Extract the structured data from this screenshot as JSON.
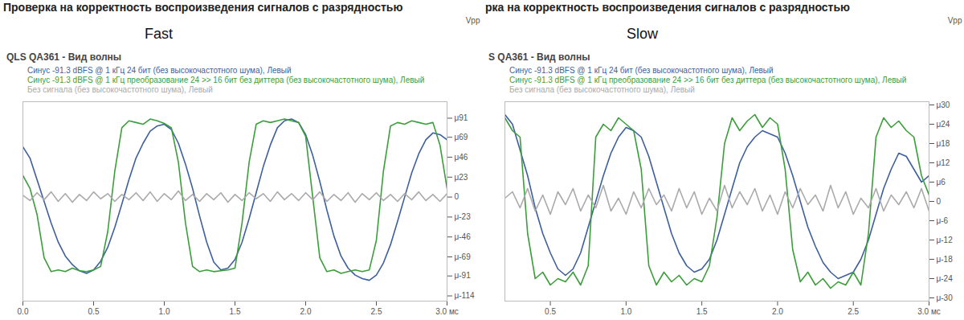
{
  "chart_data": [
    {
      "type": "line",
      "title": "Проверка на корректность воспроизведения сигналов с разрядностью",
      "subtitle": "QLS QA361 - Вид волны",
      "annotations": [
        "Fast"
      ],
      "ylabel": "Vpp",
      "grid": false,
      "xlim": [
        0,
        3
      ],
      "xticks": [
        {
          "value": 0,
          "label": "0.0"
        },
        0.5,
        {
          "value": 1,
          "label": "1.0"
        },
        1.5,
        {
          "value": 2,
          "label": "2.0"
        },
        2.5,
        {
          "value": 3,
          "label": "3.0 мс"
        }
      ],
      "ylim": [
        -120,
        110
      ],
      "yticks": [
        {
          "value": 91,
          "label": "μ91"
        },
        {
          "value": 69,
          "label": "μ69"
        },
        {
          "value": 46,
          "label": "μ46"
        },
        {
          "value": 23,
          "label": "μ23"
        },
        0,
        {
          "value": -23,
          "label": "μ-23"
        },
        {
          "value": -46,
          "label": "μ-46"
        },
        {
          "value": -69,
          "label": "μ-69"
        },
        {
          "value": -91,
          "label": "μ-91"
        },
        {
          "value": -114,
          "label": "μ-114"
        }
      ],
      "x": [
        0,
        0.05,
        0.1,
        0.15,
        0.2,
        0.25,
        0.3,
        0.35,
        0.4,
        0.45,
        0.5,
        0.55,
        0.6,
        0.65,
        0.7,
        0.75,
        0.8,
        0.85,
        0.9,
        0.95,
        1,
        1.05,
        1.1,
        1.15,
        1.2,
        1.25,
        1.3,
        1.35,
        1.4,
        1.45,
        1.5,
        1.55,
        1.6,
        1.65,
        1.7,
        1.75,
        1.8,
        1.85,
        1.9,
        1.95,
        2,
        2.05,
        2.1,
        2.15,
        2.2,
        2.25,
        2.3,
        2.35,
        2.4,
        2.45,
        2.5,
        2.55,
        2.6,
        2.65,
        2.7,
        2.75,
        2.8,
        2.85,
        2.9,
        2.95,
        3
      ],
      "series": [
        {
          "name": "Синус -91.3 dBFS @ 1 кГц 24 бит (без высокочастотного шума), Левый",
          "color": "#3d5f9e",
          "values": [
            58,
            45,
            20,
            -5,
            -30,
            -52,
            -68,
            -78,
            -85,
            -88,
            -84,
            -74,
            -58,
            -35,
            -8,
            20,
            45,
            62,
            76,
            82,
            84,
            78,
            62,
            38,
            10,
            -22,
            -52,
            -75,
            -84,
            -82,
            -72,
            -52,
            -25,
            5,
            35,
            60,
            80,
            88,
            90,
            86,
            72,
            48,
            18,
            -15,
            -45,
            -68,
            -82,
            -90,
            -94,
            -96,
            -90,
            -76,
            -55,
            -28,
            0,
            28,
            50,
            66,
            74,
            72,
            66
          ]
        },
        {
          "name": "Синус -91.3 dBFS @ 1 кГц преобразование 24 >> 16 бит без диттера (без высокочастотного шума), Левый",
          "color": "#3b9e3b",
          "values": [
            25,
            10,
            -20,
            -70,
            -86,
            -84,
            -86,
            -82,
            -85,
            -86,
            -84,
            -80,
            -40,
            30,
            80,
            88,
            86,
            84,
            90,
            88,
            85,
            80,
            40,
            -30,
            -80,
            -86,
            -84,
            -86,
            -85,
            -84,
            -82,
            -30,
            40,
            84,
            88,
            86,
            88,
            90,
            88,
            86,
            70,
            0,
            -70,
            -86,
            -84,
            -88,
            -86,
            -84,
            -86,
            -84,
            -50,
            30,
            82,
            86,
            84,
            88,
            86,
            84,
            86,
            60,
            10
          ]
        },
        {
          "name": "Без сигнала (без высокочастотного шума), Левый",
          "color": "#aaaaaa",
          "values": [
            2,
            -4,
            5,
            -3,
            6,
            -5,
            4,
            -6,
            3,
            -4,
            6,
            -2,
            4,
            -5,
            3,
            -3,
            5,
            -4,
            6,
            -5,
            4,
            -3,
            7,
            -4,
            3,
            -5,
            4,
            -3,
            5,
            -6,
            3,
            -4,
            5,
            -2,
            4,
            -5,
            6,
            -3,
            4,
            -4,
            5,
            -3,
            6,
            -5,
            3,
            -4,
            5,
            -6,
            4,
            -3,
            5,
            -4,
            3,
            -5,
            4,
            -3,
            6,
            -4,
            3,
            -5,
            4
          ]
        }
      ]
    },
    {
      "type": "line",
      "title": "рка на корректность воспроизведения сигналов с разрядностью",
      "subtitle": "S QA361 - Вид волны",
      "annotations": [
        "Slow"
      ],
      "ylabel": "Vpp",
      "grid": false,
      "xlim": [
        0.2,
        3
      ],
      "xticks": [
        0.5,
        {
          "value": 1,
          "label": "1.0"
        },
        1.5,
        {
          "value": 2,
          "label": "2.0"
        },
        2.5,
        {
          "value": 3,
          "label": "3.0 мс"
        }
      ],
      "ylim": [
        -31,
        31
      ],
      "yticks": [
        {
          "value": 30,
          "label": "μ30"
        },
        {
          "value": 24,
          "label": "μ24"
        },
        {
          "value": 18,
          "label": "μ18"
        },
        {
          "value": 12,
          "label": "μ12"
        },
        {
          "value": 6,
          "label": "μ6"
        },
        0,
        {
          "value": -6,
          "label": "μ-6"
        },
        {
          "value": -12,
          "label": "μ-12"
        },
        {
          "value": -18,
          "label": "μ-18"
        },
        {
          "value": -24,
          "label": "μ-24"
        },
        {
          "value": -30,
          "label": "μ-30"
        }
      ],
      "x": [
        0.2,
        0.25,
        0.3,
        0.35,
        0.4,
        0.45,
        0.5,
        0.55,
        0.6,
        0.65,
        0.7,
        0.75,
        0.8,
        0.85,
        0.9,
        0.95,
        1,
        1.05,
        1.1,
        1.15,
        1.2,
        1.25,
        1.3,
        1.35,
        1.4,
        1.45,
        1.5,
        1.55,
        1.6,
        1.65,
        1.7,
        1.75,
        1.8,
        1.85,
        1.9,
        1.95,
        2,
        2.05,
        2.1,
        2.15,
        2.2,
        2.25,
        2.3,
        2.35,
        2.4,
        2.45,
        2.5,
        2.55,
        2.6,
        2.65,
        2.7,
        2.75,
        2.8,
        2.85,
        2.9,
        2.95,
        3
      ],
      "series": [
        {
          "name": "Синус -91.3 dBFS @ 1 кГц 24 бит (без высокочастотного шума), Левый",
          "color": "#3d5f9e",
          "values": [
            27,
            24,
            16,
            8,
            -2,
            -10,
            -16,
            -21,
            -23,
            -21,
            -16,
            -8,
            0,
            8,
            15,
            20,
            23,
            22,
            20,
            14,
            6,
            -2,
            -10,
            -16,
            -20,
            -22,
            -21,
            -18,
            -12,
            -4,
            4,
            12,
            17,
            20,
            22,
            21,
            20,
            15,
            8,
            0,
            -8,
            -14,
            -19,
            -22,
            -24,
            -23,
            -22,
            -18,
            -12,
            -4,
            4,
            10,
            15,
            14,
            10,
            6,
            8
          ]
        },
        {
          "name": "Синус -91.3 dBFS @ 1 кГц преобразование 24 >> 16 бит без диттера (без высокочастотного шума), Левый",
          "color": "#3b9e3b",
          "values": [
            26,
            22,
            20,
            -10,
            -24,
            -22,
            -26,
            -24,
            -25,
            -22,
            -26,
            -20,
            20,
            24,
            22,
            26,
            24,
            22,
            10,
            -20,
            -26,
            -22,
            -25,
            -23,
            -26,
            -24,
            -25,
            -20,
            -5,
            18,
            26,
            22,
            25,
            27,
            23,
            26,
            24,
            10,
            -15,
            -25,
            -22,
            -26,
            -24,
            -27,
            -25,
            -26,
            -22,
            -26,
            -10,
            20,
            26,
            23,
            25,
            22,
            20,
            8,
            2
          ]
        },
        {
          "name": "Без сигнала (без высокочастотного шума), Левый",
          "color": "#aaaaaa",
          "values": [
            1,
            3,
            -2,
            4,
            -3,
            2,
            -4,
            3,
            -1,
            4,
            -3,
            2,
            -2,
            5,
            -3,
            1,
            -4,
            3,
            -2,
            4,
            -1,
            2,
            -3,
            4,
            -2,
            3,
            -4,
            1,
            -3,
            5,
            -2,
            3,
            -1,
            4,
            -3,
            2,
            -4,
            3,
            -2,
            4,
            -1,
            2,
            -3,
            5,
            -2,
            3,
            -4,
            1,
            -2,
            4,
            -3,
            2,
            -1,
            3,
            -2,
            4,
            -3
          ]
        }
      ]
    }
  ]
}
